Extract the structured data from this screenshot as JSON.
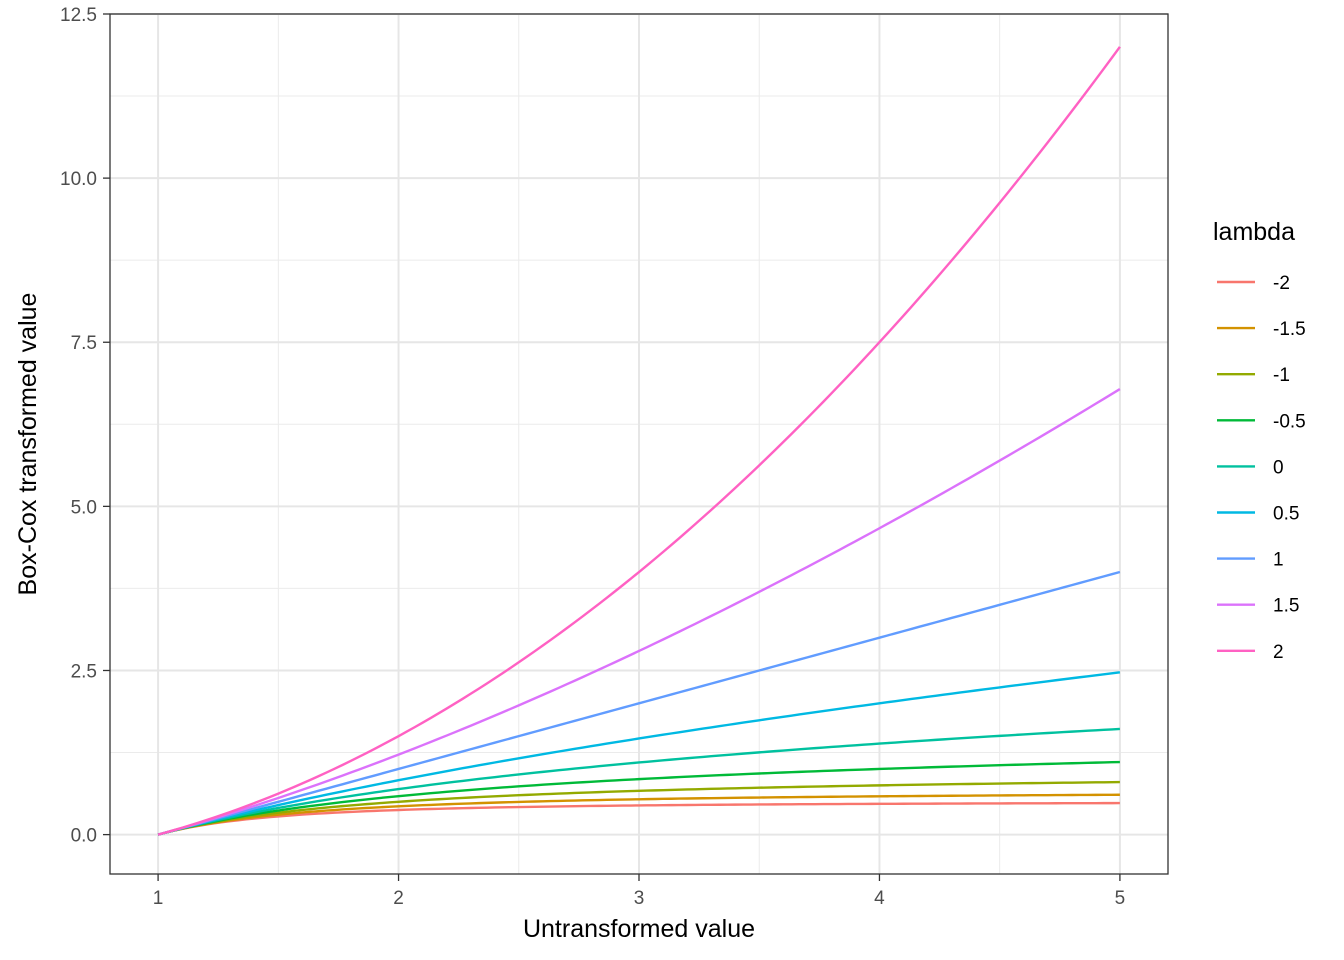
{
  "chart_data": {
    "type": "line",
    "title": "",
    "xlabel": "Untransformed value",
    "ylabel": "Box-Cox transformed value",
    "xlim": [
      0.8,
      5.2
    ],
    "ylim": [
      -0.6,
      12.5
    ],
    "x_ticks": [
      1,
      2,
      3,
      4,
      5
    ],
    "x_tick_labels": [
      "1",
      "2",
      "3",
      "4",
      "5"
    ],
    "y_ticks": [
      0,
      2.5,
      5,
      7.5,
      10,
      12.5
    ],
    "y_tick_labels": [
      "0.0",
      "2.5",
      "5.0",
      "7.5",
      "10.0",
      "12.5"
    ],
    "grid": true,
    "legend_position": "right",
    "legend_title": "lambda",
    "x": [
      1,
      5
    ],
    "series": [
      {
        "name": "-2",
        "lambda": -2,
        "color": "#F8766D"
      },
      {
        "name": "-1.5",
        "lambda": -1.5,
        "color": "#D39200"
      },
      {
        "name": "-1",
        "lambda": -1,
        "color": "#93AA00"
      },
      {
        "name": "-0.5",
        "lambda": -0.5,
        "color": "#00BA38"
      },
      {
        "name": "0",
        "lambda": 0,
        "color": "#00C19F"
      },
      {
        "name": "0.5",
        "lambda": 0.5,
        "color": "#00B9E3"
      },
      {
        "name": "1",
        "lambda": 1,
        "color": "#619CFF"
      },
      {
        "name": "1.5",
        "lambda": 1.5,
        "color": "#DB72FB"
      },
      {
        "name": "2",
        "lambda": 2,
        "color": "#FF61C3"
      }
    ],
    "endpoint_values_at_x5": [
      0.48,
      0.61,
      0.8,
      1.11,
      1.61,
      2.47,
      4.0,
      6.79,
      12.0
    ]
  }
}
